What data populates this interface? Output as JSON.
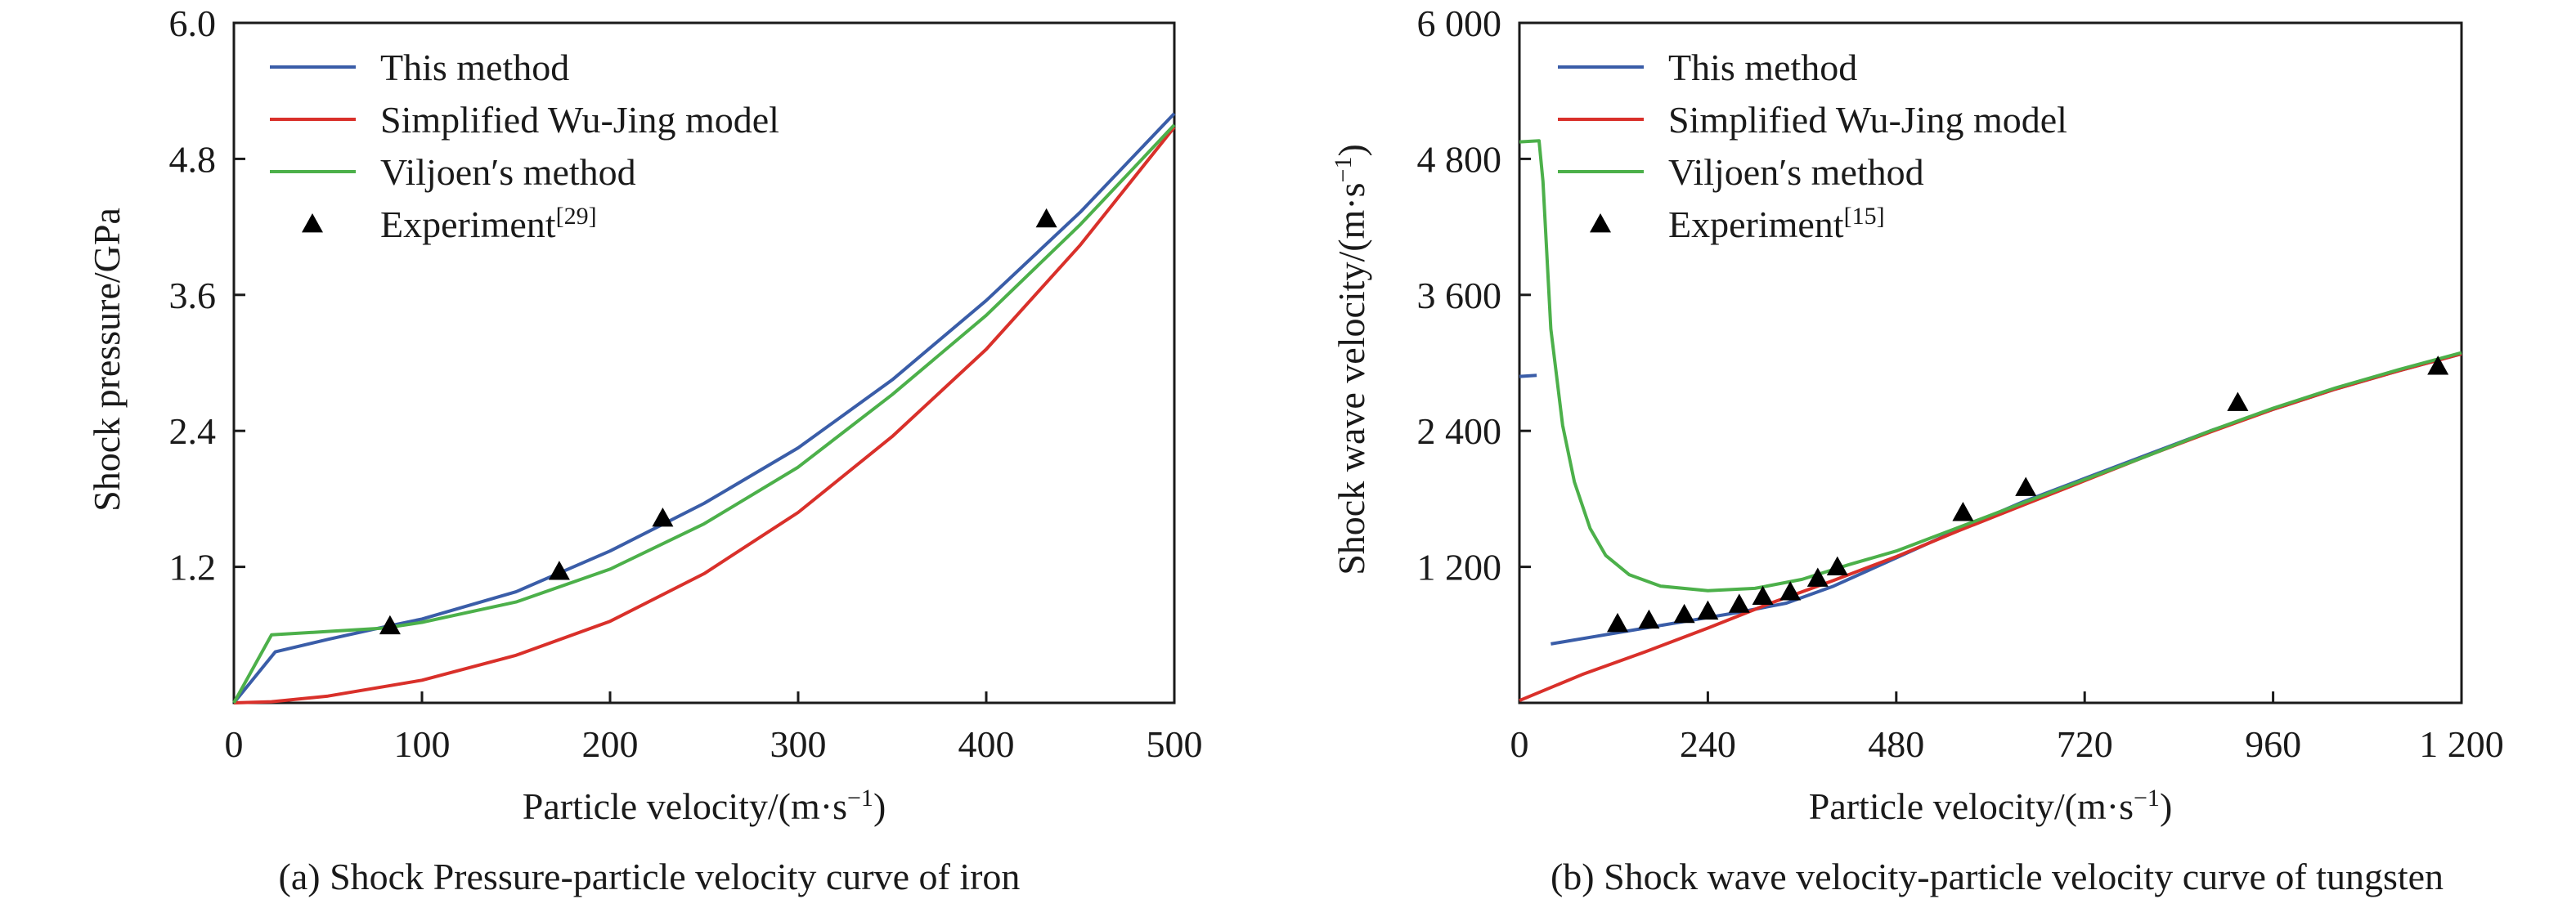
{
  "chart_data": [
    {
      "type": "line",
      "caption": "(a) Shock Pressure-particle velocity curve of iron",
      "xlabel": "Particle velocity/(m·s",
      "xlabel_sup": "−1",
      "xlabel_end": ")",
      "ylabel": "Shock pressure/GPa",
      "xlim": [
        0,
        500
      ],
      "ylim": [
        0,
        6.0
      ],
      "x_ticks": [
        0,
        100,
        200,
        300,
        400,
        500
      ],
      "x_tick_labels": [
        "0",
        "100",
        "200",
        "300",
        "400",
        "500"
      ],
      "y_ticks": [
        1.2,
        2.4,
        3.6,
        4.8,
        6.0
      ],
      "y_tick_labels": [
        "1.2",
        "2.4",
        "3.6",
        "4.8",
        "6.0"
      ],
      "legend_position": "top-left",
      "series": [
        {
          "name": "This method",
          "color": "#3a5da8",
          "kind": "line",
          "points": [
            [
              0,
              0
            ],
            [
              22,
              0.45
            ],
            [
              50,
              0.56
            ],
            [
              80,
              0.67
            ],
            [
              100,
              0.74
            ],
            [
              150,
              0.98
            ],
            [
              200,
              1.34
            ],
            [
              250,
              1.76
            ],
            [
              300,
              2.25
            ],
            [
              350,
              2.85
            ],
            [
              400,
              3.55
            ],
            [
              450,
              4.33
            ],
            [
              500,
              5.2
            ]
          ]
        },
        {
          "name": "Simplified Wu-Jing model",
          "color": "#d9302a",
          "kind": "line",
          "points": [
            [
              0,
              0
            ],
            [
              20,
              0.01
            ],
            [
              50,
              0.06
            ],
            [
              100,
              0.2
            ],
            [
              150,
              0.42
            ],
            [
              200,
              0.72
            ],
            [
              250,
              1.14
            ],
            [
              300,
              1.68
            ],
            [
              350,
              2.35
            ],
            [
              400,
              3.12
            ],
            [
              450,
              4.04
            ],
            [
              500,
              5.08
            ]
          ]
        },
        {
          "name": "Viljoen′s method",
          "color": "#4cb04a",
          "kind": "line",
          "points": [
            [
              0,
              0
            ],
            [
              20,
              0.6
            ],
            [
              50,
              0.63
            ],
            [
              80,
              0.66
            ],
            [
              100,
              0.71
            ],
            [
              150,
              0.89
            ],
            [
              200,
              1.18
            ],
            [
              250,
              1.58
            ],
            [
              300,
              2.08
            ],
            [
              350,
              2.72
            ],
            [
              400,
              3.42
            ],
            [
              450,
              4.22
            ],
            [
              500,
              5.1
            ]
          ]
        },
        {
          "name": "Experiment",
          "name_sup": "[29]",
          "color": "#000000",
          "kind": "scatter",
          "marker": "triangle",
          "points": [
            [
              83,
              0.68
            ],
            [
              173,
              1.16
            ],
            [
              228,
              1.63
            ],
            [
              432,
              4.27
            ]
          ]
        }
      ]
    },
    {
      "type": "line",
      "caption": "(b) Shock wave velocity-particle velocity curve of tungsten",
      "xlabel": "Particle velocity/(m·s",
      "xlabel_sup": "−1",
      "xlabel_end": ")",
      "ylabel": "Shock wave velocity/(m·s",
      "ylabel_sup": "−1",
      "ylabel_end": ")",
      "xlim": [
        0,
        1200
      ],
      "ylim": [
        0,
        6000
      ],
      "x_ticks": [
        0,
        240,
        480,
        720,
        960,
        1200
      ],
      "x_tick_labels": [
        "0",
        "240",
        "480",
        "720",
        "960",
        "1 200"
      ],
      "y_ticks": [
        1200,
        2400,
        3600,
        4800,
        6000
      ],
      "y_tick_labels": [
        "1 200",
        "2 400",
        "3 600",
        "4 800",
        "6 000"
      ],
      "legend_position": "top-left",
      "series": [
        {
          "name": "This method",
          "color": "#3a5da8",
          "kind": "line",
          "segments": [
            [
              [
                0,
                2880
              ],
              [
                22,
                2890
              ]
            ],
            [
              [
                40,
                520
              ],
              [
                100,
                590
              ],
              [
                160,
                660
              ],
              [
                220,
                730
              ],
              [
                280,
                800
              ],
              [
                340,
                880
              ],
              [
                400,
                1030
              ],
              [
                480,
                1280
              ],
              [
                560,
                1530
              ],
              [
                640,
                1770
              ],
              [
                720,
                1980
              ],
              [
                800,
                2190
              ],
              [
                880,
                2400
              ],
              [
                960,
                2590
              ],
              [
                1040,
                2770
              ],
              [
                1120,
                2930
              ],
              [
                1200,
                3080
              ]
            ]
          ]
        },
        {
          "name": "Simplified Wu-Jing model",
          "color": "#d9302a",
          "kind": "line",
          "points": [
            [
              0,
              20
            ],
            [
              80,
              250
            ],
            [
              160,
              450
            ],
            [
              240,
              660
            ],
            [
              320,
              880
            ],
            [
              400,
              1080
            ],
            [
              480,
              1290
            ],
            [
              560,
              1520
            ],
            [
              640,
              1740
            ],
            [
              720,
              1960
            ],
            [
              800,
              2180
            ],
            [
              880,
              2390
            ],
            [
              960,
              2590
            ],
            [
              1040,
              2770
            ],
            [
              1120,
              2930
            ],
            [
              1200,
              3080
            ]
          ]
        },
        {
          "name": "Viljoen′s method",
          "color": "#4cb04a",
          "kind": "line",
          "points": [
            [
              0,
              4950
            ],
            [
              25,
              4960
            ],
            [
              30,
              4600
            ],
            [
              40,
              3300
            ],
            [
              55,
              2450
            ],
            [
              70,
              1950
            ],
            [
              90,
              1540
            ],
            [
              110,
              1300
            ],
            [
              140,
              1130
            ],
            [
              180,
              1030
            ],
            [
              240,
              990
            ],
            [
              300,
              1010
            ],
            [
              360,
              1090
            ],
            [
              420,
              1220
            ],
            [
              480,
              1340
            ],
            [
              560,
              1550
            ],
            [
              640,
              1760
            ],
            [
              720,
              1970
            ],
            [
              800,
              2180
            ],
            [
              880,
              2400
            ],
            [
              960,
              2600
            ],
            [
              1040,
              2780
            ],
            [
              1120,
              2940
            ],
            [
              1200,
              3090
            ]
          ]
        },
        {
          "name": "Experiment",
          "name_sup": "[15]",
          "color": "#000000",
          "kind": "scatter",
          "marker": "triangle",
          "points": [
            [
              125,
              700
            ],
            [
              165,
              730
            ],
            [
              210,
              780
            ],
            [
              240,
              810
            ],
            [
              280,
              870
            ],
            [
              310,
              940
            ],
            [
              345,
              980
            ],
            [
              380,
              1100
            ],
            [
              405,
              1200
            ],
            [
              565,
              1680
            ],
            [
              645,
              1900
            ],
            [
              915,
              2650
            ],
            [
              1170,
              2970
            ]
          ]
        }
      ]
    }
  ]
}
